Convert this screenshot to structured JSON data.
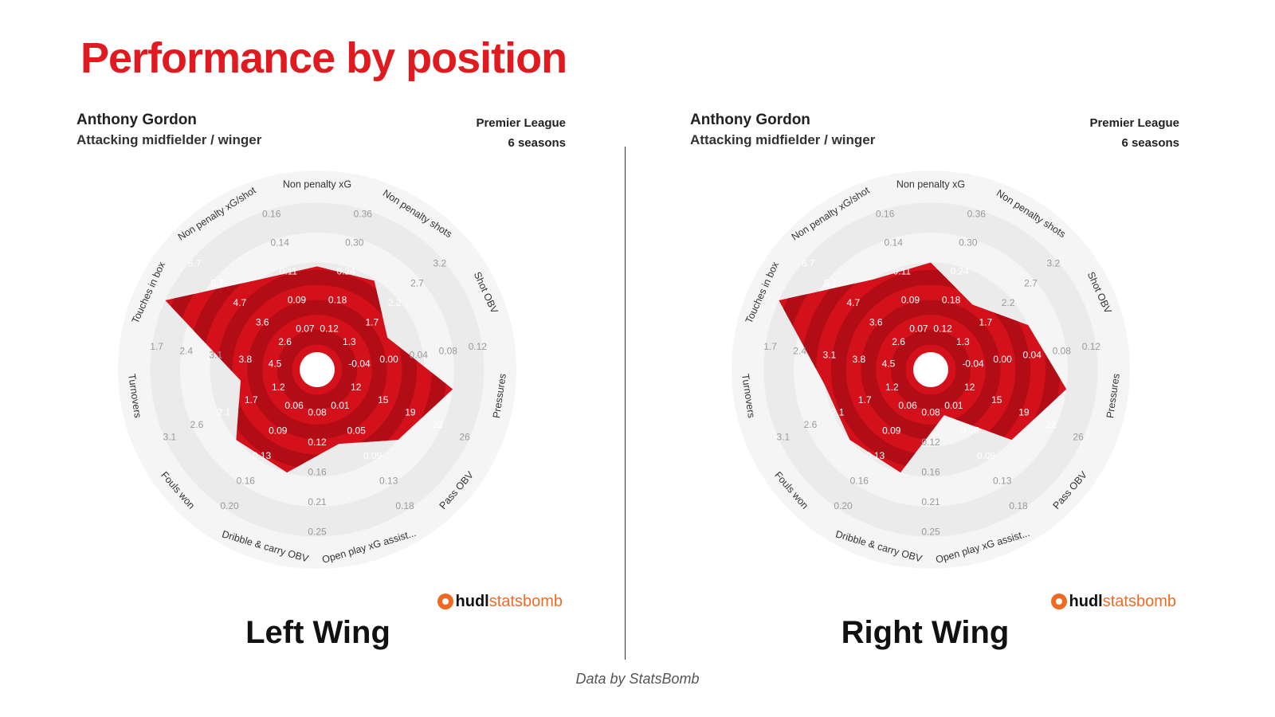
{
  "page_title": "Performance by position",
  "credit": "Data by StatsBomb",
  "logo": {
    "hudl": "hudl",
    "statsbomb": "statsbomb"
  },
  "colors": {
    "accent": "#e01a1f",
    "polygon": "#d4111b",
    "polygon_dark": "#b20d16",
    "ring_bg": "#efefef"
  },
  "panels": [
    {
      "player": "Anthony Gordon",
      "role": "Attacking midfielder / winger",
      "league": "Premier League",
      "seasons": "6 seasons",
      "position_label": "Left Wing"
    },
    {
      "player": "Anthony Gordon",
      "role": "Attacking midfielder / winger",
      "league": "Premier League",
      "seasons": "6 seasons",
      "position_label": "Right Wing"
    }
  ],
  "chart_data": [
    {
      "type": "radar",
      "title": "Left Wing",
      "axes": [
        {
          "name": "Non penalty xG",
          "ticks": [
            "0.12",
            "0.18",
            "0.24",
            "0.30",
            "0.36"
          ],
          "value_ring": 2.87
        },
        {
          "name": "Non penalty shots",
          "ticks": [
            "1.3",
            "1.7",
            "2.2",
            "2.7",
            "3.2"
          ],
          "value_ring": 2.95
        },
        {
          "name": "Shot OBV",
          "ticks": [
            "-0.04",
            "0.00",
            "0.04",
            "0.08",
            "0.12"
          ],
          "value_ring": 2.0
        },
        {
          "name": "Pressures",
          "ticks": [
            "12",
            "15",
            "19",
            "22",
            "26"
          ],
          "value_ring": 4.0
        },
        {
          "name": "Pass OBV",
          "ticks": [
            "0.01",
            "0.05",
            "0.09",
            "0.13",
            "0.18"
          ],
          "value_ring": 3.0
        },
        {
          "name": "Open play xG assisted",
          "ticks": [
            "0.08",
            "0.12",
            "0.16",
            "0.21",
            "0.25"
          ],
          "value_ring": 2.0
        },
        {
          "name": "Dribble & carry OBV",
          "ticks": [
            "0.06",
            "0.09",
            "0.13",
            "0.16",
            "0.20"
          ],
          "value_ring": 3.0
        },
        {
          "name": "Fouls won",
          "ticks": [
            "1.2",
            "1.7",
            "2.1",
            "2.6",
            "3.1"
          ],
          "value_ring": 3.0
        },
        {
          "name": "Turnovers",
          "ticks": [
            "4.5",
            "3.8",
            "3.1",
            "2.4",
            "1.7"
          ],
          "value_ring": 2.0
        },
        {
          "name": "Touches in box",
          "ticks": [
            "2.6",
            "3.6",
            "4.7",
            "5.7",
            "6.7"
          ],
          "value_ring": 5.0
        },
        {
          "name": "Non penalty xG/shot",
          "ticks": [
            "0.07",
            "0.09",
            "0.11",
            "0.14",
            "0.16"
          ],
          "value_ring": 3.0
        }
      ]
    },
    {
      "type": "radar",
      "title": "Right Wing",
      "axes": [
        {
          "name": "Non penalty xG",
          "ticks": [
            "0.12",
            "0.18",
            "0.24",
            "0.30",
            "0.36"
          ],
          "value_ring": 3.0
        },
        {
          "name": "Non penalty shots",
          "ticks": [
            "1.3",
            "1.7",
            "2.2",
            "2.7",
            "3.2"
          ],
          "value_ring": 2.0
        },
        {
          "name": "Shot OBV",
          "ticks": [
            "-0.04",
            "0.00",
            "0.04",
            "0.08",
            "0.12"
          ],
          "value_ring": 3.0
        },
        {
          "name": "Pressures",
          "ticks": [
            "12",
            "15",
            "19",
            "22",
            "26"
          ],
          "value_ring": 4.0
        },
        {
          "name": "Pass OBV",
          "ticks": [
            "0.01",
            "0.05",
            "0.09",
            "0.13",
            "0.18"
          ],
          "value_ring": 3.0
        },
        {
          "name": "Open play xG assisted",
          "ticks": [
            "0.08",
            "0.12",
            "0.16",
            "0.21",
            "0.25"
          ],
          "value_ring": 1.0
        },
        {
          "name": "Dribble & carry OBV",
          "ticks": [
            "0.06",
            "0.09",
            "0.13",
            "0.16",
            "0.20"
          ],
          "value_ring": 3.0
        },
        {
          "name": "Fouls won",
          "ticks": [
            "1.2",
            "1.7",
            "2.1",
            "2.6",
            "3.1"
          ],
          "value_ring": 3.0
        },
        {
          "name": "Turnovers",
          "ticks": [
            "4.5",
            "3.8",
            "3.1",
            "2.4",
            "1.7"
          ],
          "value_ring": 3.0
        },
        {
          "name": "Touches in box",
          "ticks": [
            "2.6",
            "3.6",
            "4.7",
            "5.7",
            "6.7"
          ],
          "value_ring": 5.0
        },
        {
          "name": "Non penalty xG/shot",
          "ticks": [
            "0.07",
            "0.09",
            "0.11",
            "0.14",
            "0.16"
          ],
          "value_ring": 3.0
        }
      ]
    }
  ]
}
